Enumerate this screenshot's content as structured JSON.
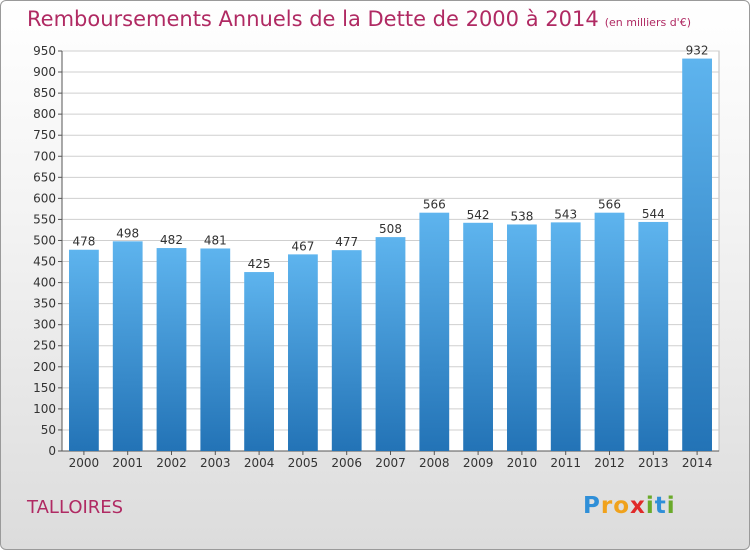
{
  "title": "Remboursements Annuels de la Dette de 2000 à 2014",
  "subtitle": "(en milliers d'€)",
  "commune": "TALLOIRES",
  "logo": {
    "text": "Proxiti",
    "letters": [
      {
        "ch": "P",
        "color": "#2f8fd8"
      },
      {
        "ch": "r",
        "color": "#f0a21c"
      },
      {
        "ch": "o",
        "color": "#f0a21c"
      },
      {
        "ch": "x",
        "color": "#e02a2a"
      },
      {
        "ch": "i",
        "color": "#6aaa2a"
      },
      {
        "ch": "t",
        "color": "#2f8fd8"
      },
      {
        "ch": "i",
        "color": "#6aaa2a"
      }
    ]
  },
  "colors": {
    "title": "#b02a63",
    "bar_top": "#5eb4ee",
    "bar_bottom": "#2373b6",
    "grid": "#cfcfcf"
  },
  "chart_data": {
    "type": "bar",
    "title": "Remboursements Annuels de la Dette de 2000 à 2014",
    "subtitle": "(en milliers d'€)",
    "categories": [
      "2000",
      "2001",
      "2002",
      "2003",
      "2004",
      "2005",
      "2006",
      "2007",
      "2008",
      "2009",
      "2010",
      "2011",
      "2012",
      "2013",
      "2014"
    ],
    "values": [
      478,
      498,
      482,
      481,
      425,
      467,
      477,
      508,
      566,
      542,
      538,
      543,
      566,
      544,
      932
    ],
    "ylim": [
      0,
      950
    ],
    "yticks": [
      0,
      50,
      100,
      150,
      200,
      250,
      300,
      350,
      400,
      450,
      500,
      550,
      600,
      650,
      700,
      750,
      800,
      850,
      900,
      950
    ],
    "grid": true,
    "legend": "none"
  }
}
